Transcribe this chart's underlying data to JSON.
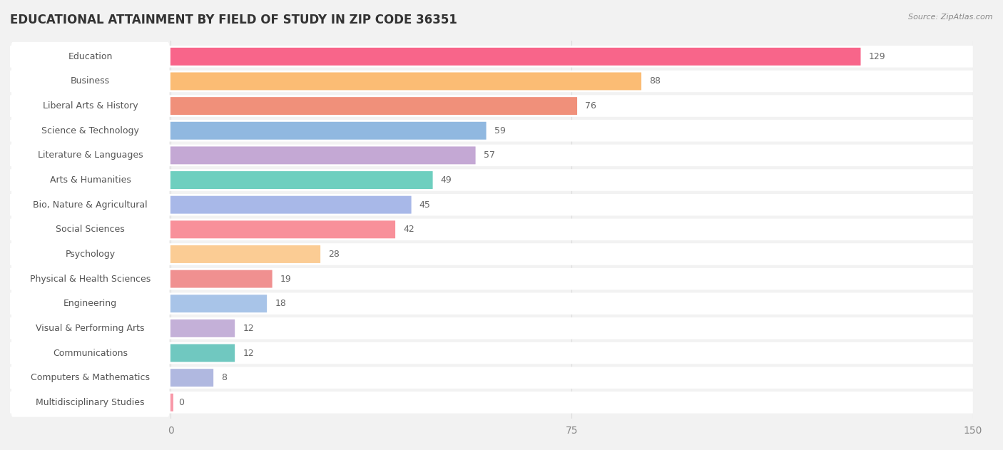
{
  "title": "EDUCATIONAL ATTAINMENT BY FIELD OF STUDY IN ZIP CODE 36351",
  "source": "Source: ZipAtlas.com",
  "categories": [
    "Education",
    "Business",
    "Liberal Arts & History",
    "Science & Technology",
    "Literature & Languages",
    "Arts & Humanities",
    "Bio, Nature & Agricultural",
    "Social Sciences",
    "Psychology",
    "Physical & Health Sciences",
    "Engineering",
    "Visual & Performing Arts",
    "Communications",
    "Computers & Mathematics",
    "Multidisciplinary Studies"
  ],
  "values": [
    129,
    88,
    76,
    59,
    57,
    49,
    45,
    42,
    28,
    19,
    18,
    12,
    12,
    8,
    0
  ],
  "bar_colors": [
    "#F8658A",
    "#FBBC74",
    "#F0907A",
    "#90B8E0",
    "#C4A8D4",
    "#6ECFBF",
    "#A8B8E8",
    "#F8909A",
    "#FBCC94",
    "#F09090",
    "#A8C4E8",
    "#C4B0D8",
    "#70C8C0",
    "#B0B8E0",
    "#F898A8"
  ],
  "xlim": [
    0,
    150
  ],
  "xticks": [
    0,
    75,
    150
  ],
  "background_color": "#F2F2F2",
  "bar_row_color": "#FFFFFF",
  "label_pill_color": "#FFFFFF",
  "label_text_color": "#555555",
  "value_text_color": "#666666",
  "title_color": "#333333",
  "source_color": "#888888",
  "title_fontsize": 12,
  "tick_fontsize": 10,
  "value_fontsize": 9,
  "category_fontsize": 9
}
